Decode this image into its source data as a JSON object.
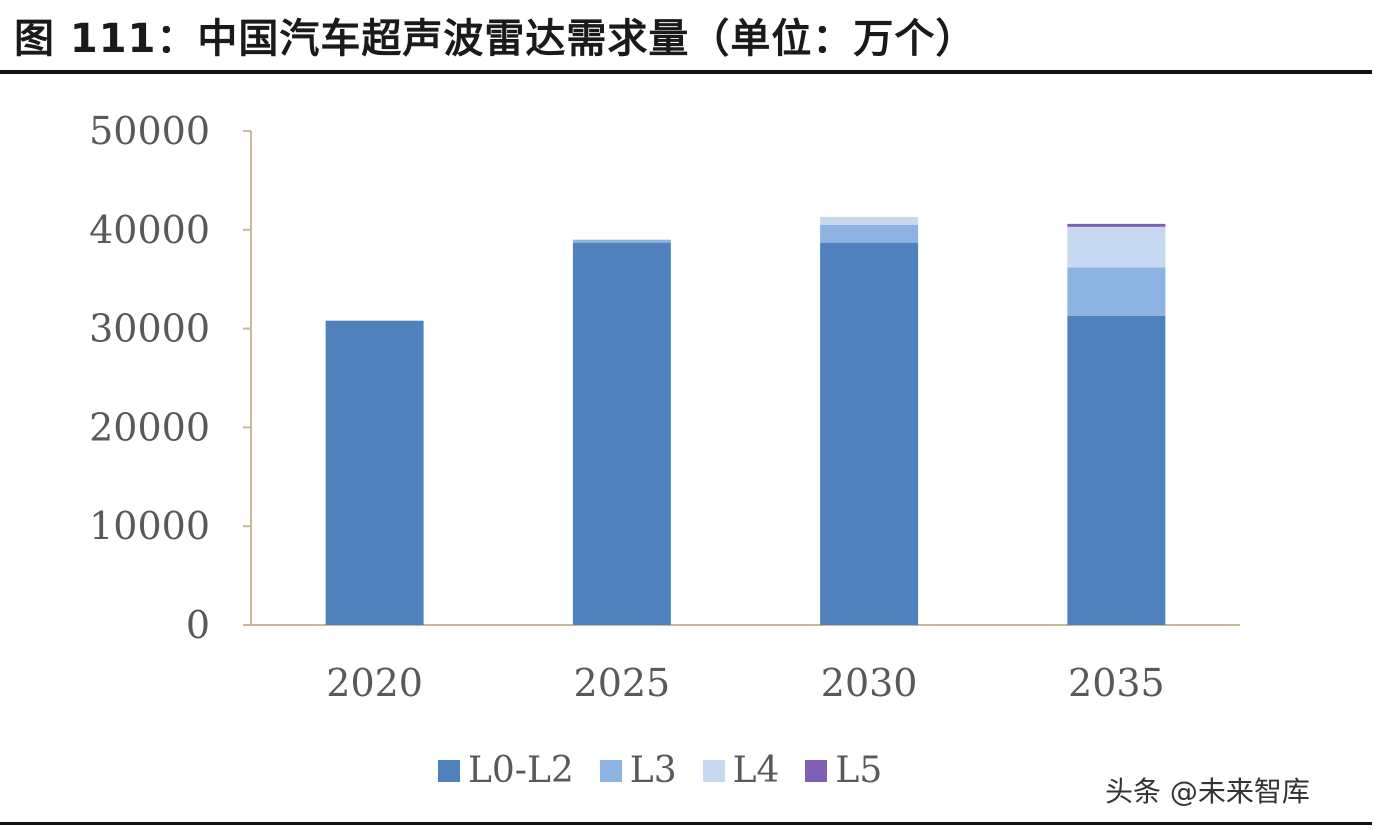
{
  "title": "图 111：中国汽车超声波雷达需求量（单位：万个）",
  "watermark": "头条 @未来智库",
  "chart_data": {
    "type": "bar",
    "stacked": true,
    "categories": [
      "2020",
      "2025",
      "2030",
      "2035"
    ],
    "series": [
      {
        "name": "L0-L2",
        "color": "#4f81bd",
        "values": [
          30800,
          38700,
          38700,
          31300
        ]
      },
      {
        "name": "L3",
        "color": "#8db3e2",
        "values": [
          0,
          300,
          1800,
          4900
        ]
      },
      {
        "name": "L4",
        "color": "#c6d9f1",
        "values": [
          0,
          0,
          800,
          4100
        ]
      },
      {
        "name": "L5",
        "color": "#7f5fb3",
        "values": [
          0,
          0,
          0,
          300
        ]
      }
    ],
    "yticks": [
      "0",
      "10000",
      "20000",
      "30000",
      "40000",
      "50000"
    ],
    "ylim": [
      0,
      50000
    ],
    "legend_position": "bottom",
    "grid": false
  }
}
